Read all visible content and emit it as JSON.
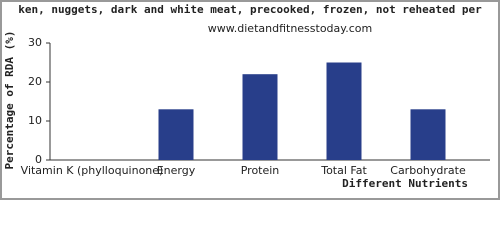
{
  "chart_data": {
    "type": "bar",
    "title": "ken, nuggets, dark and white meat, precooked, frozen, not reheated per",
    "subtitle": "www.dietandfitnesstoday.com",
    "xlabel": "Different Nutrients",
    "ylabel": "Percentage of RDA (%)",
    "categories": [
      "Vitamin K (phylloquinone)",
      "Energy",
      "Protein",
      "Total Fat",
      "Carbohydrate"
    ],
    "values": [
      0,
      13,
      22,
      25,
      13
    ],
    "color": "#283e8a",
    "ylim": [
      0,
      30
    ],
    "yticks": [
      0,
      10,
      20,
      30
    ],
    "grid": false
  }
}
